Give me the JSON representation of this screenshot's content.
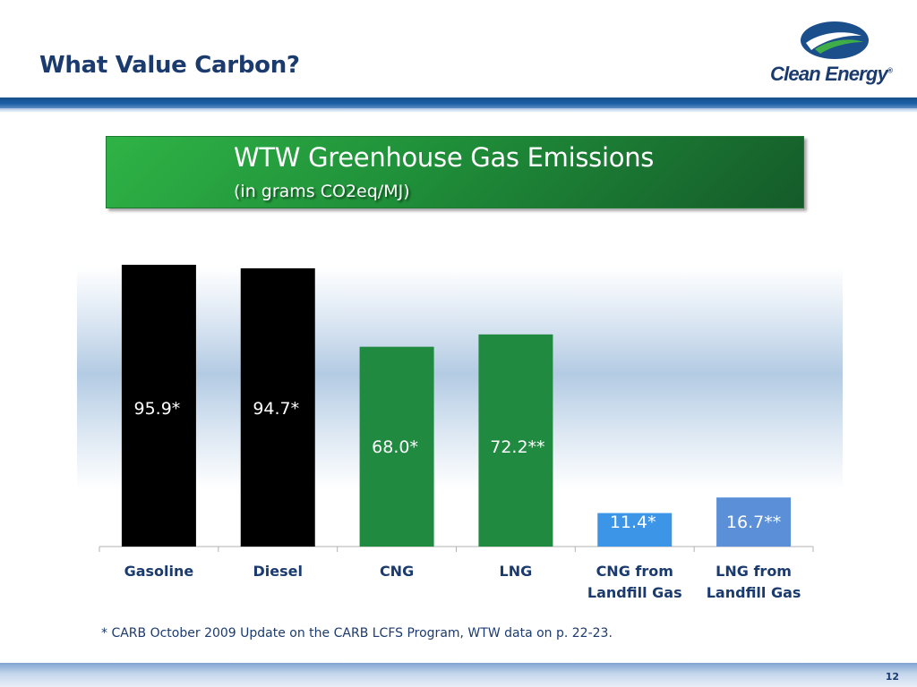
{
  "slide": {
    "title": "What Value Carbon?",
    "brand": "Clean Energy",
    "brand_mark": "®",
    "footnote": "* CARB October 2009 Update on the CARB LCFS Program, WTW data on p. 22-23.",
    "page_number": "12"
  },
  "chart_data": {
    "type": "bar",
    "title": "WTW Greenhouse Gas Emissions",
    "subtitle": "(in grams CO2eq/MJ)",
    "xlabel": "",
    "ylabel": "",
    "ylim": [
      0,
      95.9
    ],
    "categories": [
      [
        "Gasoline"
      ],
      [
        "Diesel"
      ],
      [
        "CNG"
      ],
      [
        "LNG"
      ],
      [
        "CNG from",
        "Landfill Gas"
      ],
      [
        "LNG from",
        "Landfill Gas"
      ]
    ],
    "values": [
      95.9,
      94.7,
      68.0,
      72.2,
      11.4,
      16.7
    ],
    "data_labels": [
      "95.9*",
      "94.7*",
      "68.0*",
      "72.2**",
      "11.4*",
      "16.7**"
    ],
    "colors": [
      "#000000",
      "#000000",
      "#208a41",
      "#208a41",
      "#3d95e8",
      "#5b8fd8"
    ],
    "grid": false,
    "legend": "none"
  },
  "theme": {
    "title_color": "#1b3a6e",
    "logo_blue": "#1b4f8c",
    "logo_green": "#3fae49",
    "axis_color": "#b3b3b3",
    "label_color": "#1b3a6e"
  }
}
